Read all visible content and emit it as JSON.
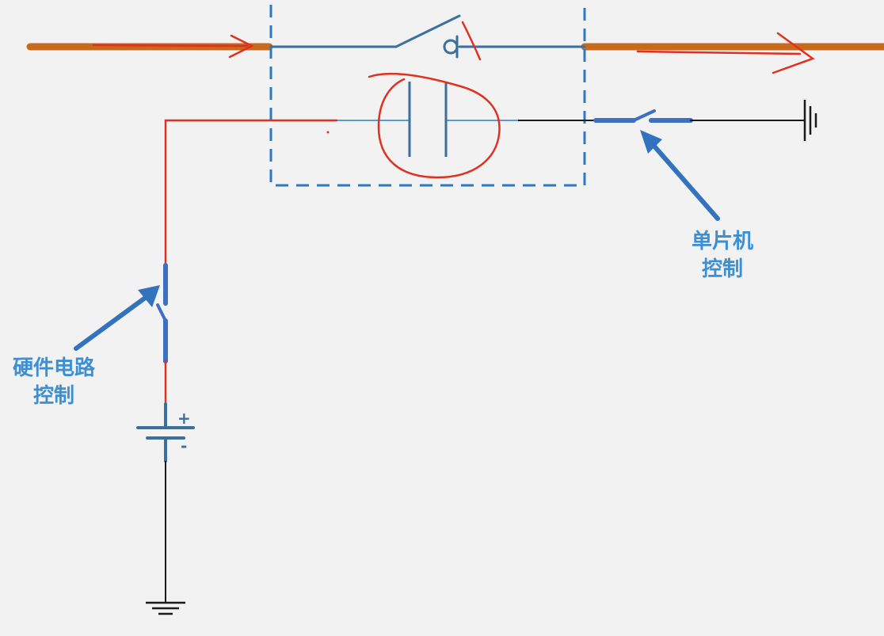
{
  "labels": {
    "hardware_control": [
      "硬件电路",
      "控制"
    ],
    "mcu_control": [
      "单片机",
      "控制"
    ]
  },
  "battery": {
    "plus_sign": "+",
    "minus_sign": "-"
  },
  "colors": {
    "background": "#f2f2f2",
    "main_line": "#c86a1e",
    "annotation_red": "#e03020",
    "component_blue": "#3a6f9e",
    "arrow_blue": "#3373bd",
    "dashed_box": "#2f78c4",
    "label_blue": "#3d8fd1",
    "ground_black": "#1a1a1a"
  },
  "icons": {
    "main_switch": "switch-with-latch-icon",
    "capacitor": "capacitor-icon",
    "ground": "ground-icon",
    "battery": "battery-icon"
  }
}
